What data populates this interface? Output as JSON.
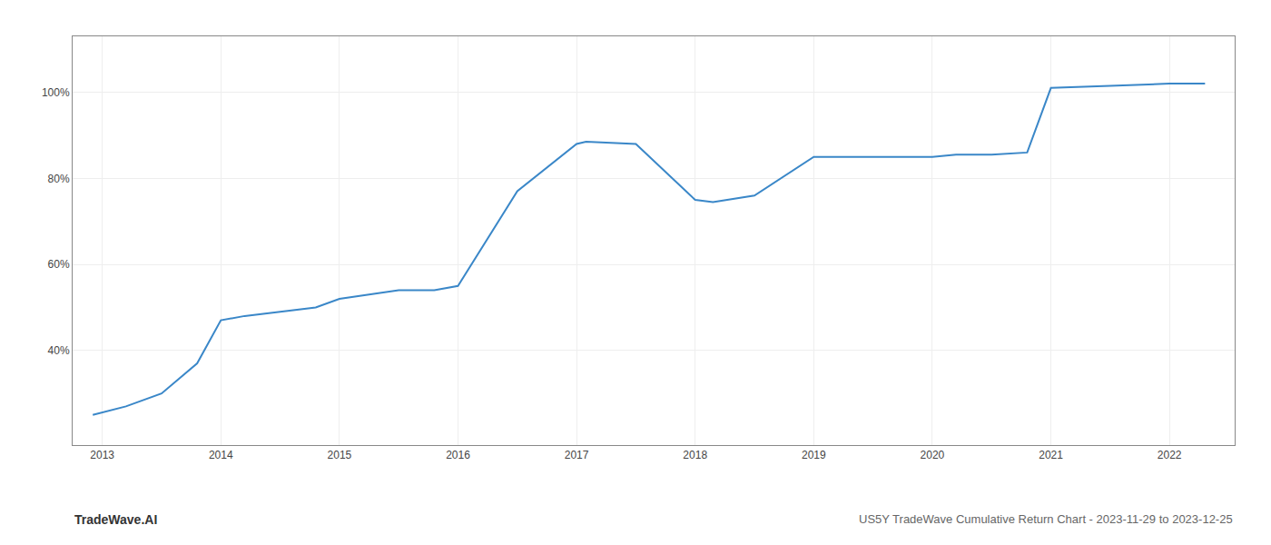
{
  "chart_data": {
    "type": "line",
    "x": [
      2012.92,
      2013.2,
      2013.5,
      2013.8,
      2014.0,
      2014.2,
      2014.5,
      2014.8,
      2015.0,
      2015.25,
      2015.5,
      2015.8,
      2016.0,
      2016.5,
      2017.0,
      2017.08,
      2017.5,
      2018.0,
      2018.15,
      2018.5,
      2019.0,
      2019.5,
      2020.0,
      2020.2,
      2020.5,
      2020.8,
      2021.0,
      2021.5,
      2022.0,
      2022.3
    ],
    "values": [
      25,
      27,
      30,
      37,
      47,
      48,
      49,
      50,
      52,
      53,
      54,
      54,
      55,
      77,
      88,
      88.5,
      88,
      75,
      74.5,
      76,
      85,
      85,
      85,
      85.5,
      85.5,
      86,
      101,
      101.5,
      102,
      102
    ],
    "color": "#3a87c8",
    "xlim": [
      2012.75,
      2022.55
    ],
    "xticks": [
      2013,
      2014,
      2015,
      2016,
      2017,
      2018,
      2019,
      2020,
      2021,
      2022
    ],
    "ylim": [
      18,
      113
    ],
    "yticks": [
      {
        "value": 40,
        "label": "40%"
      },
      {
        "value": 60,
        "label": "60%"
      },
      {
        "value": 80,
        "label": "80%"
      },
      {
        "value": 100,
        "label": "100%"
      }
    ],
    "grid": true,
    "annotations": [
      "TradeWave.AI",
      "US5Y TradeWave Cumulative Return Chart - 2023-11-29 to 2023-12-25"
    ]
  }
}
